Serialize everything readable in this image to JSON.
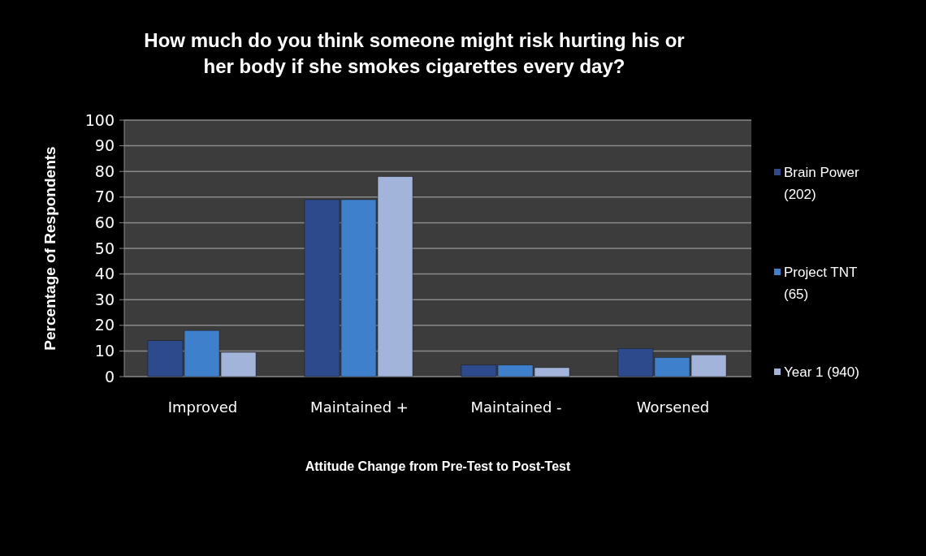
{
  "chart_data": {
    "type": "bar",
    "title": "How much do you think someone might risk hurting his or her body if she smokes cigarettes every day?",
    "xlabel": "Attitude Change from Pre-Test to Post-Test",
    "ylabel": "Percentage of Respondents",
    "categories": [
      "Improved",
      "Maintained +",
      "Maintained -",
      "Worsened"
    ],
    "series": [
      {
        "name": "Brain Power (202)",
        "color": "#2c4a8c",
        "values": [
          14,
          69,
          4.5,
          11
        ]
      },
      {
        "name": "Project TNT (65)",
        "color": "#3f80cc",
        "values": [
          18,
          69,
          4.5,
          7.5
        ]
      },
      {
        "name": "Year 1 (940)",
        "color": "#a3b4da",
        "values": [
          9.5,
          78,
          3.5,
          8.5
        ]
      }
    ],
    "ylim": [
      0,
      100
    ],
    "yticks": [
      0,
      10,
      20,
      30,
      40,
      50,
      60,
      70,
      80,
      90,
      100
    ],
    "grid": "y",
    "legend": "right"
  }
}
